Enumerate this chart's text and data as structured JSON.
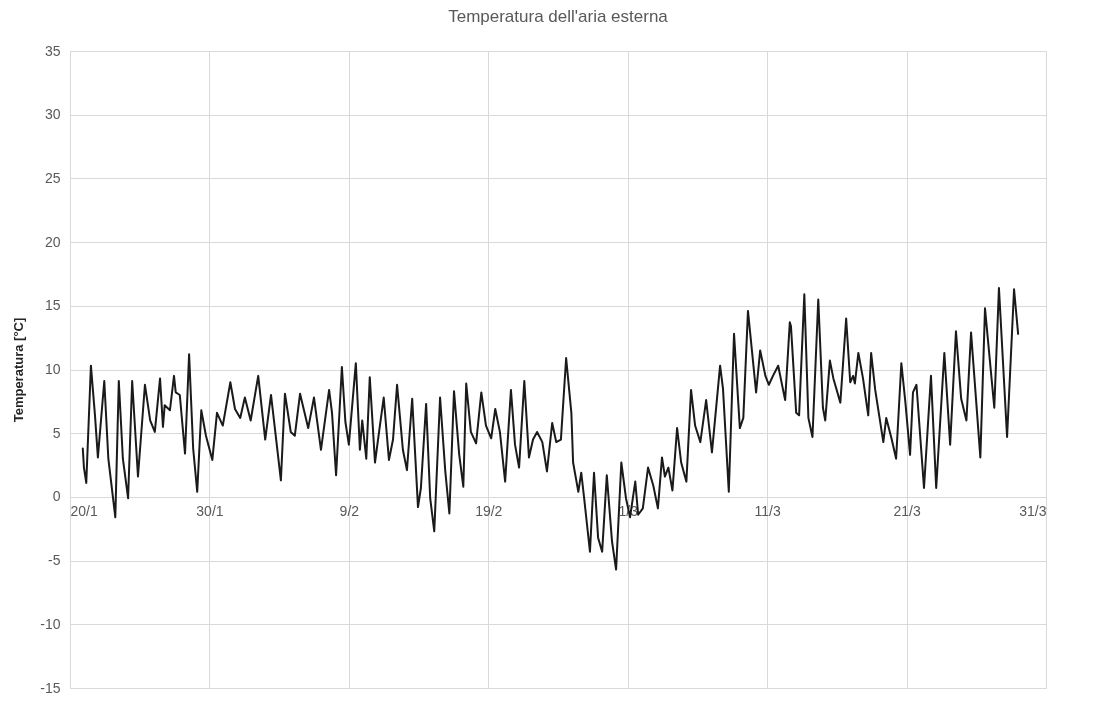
{
  "chart_data": {
    "type": "line",
    "title": "Temperatura dell'aria esterna",
    "ylabel": "Temperatura [°C]",
    "xlim": [
      "--01-20",
      "--03-31"
    ],
    "xticks": [
      {
        "value": "--01-20",
        "label": "20/1"
      },
      {
        "value": "--01-30",
        "label": "30/1"
      },
      {
        "value": "--02-09",
        "label": "9/2"
      },
      {
        "value": "--02-19",
        "label": "19/2"
      },
      {
        "value": "--03-01",
        "label": "1/3"
      },
      {
        "value": "--03-11",
        "label": "11/3"
      },
      {
        "value": "--03-21",
        "label": "21/3"
      },
      {
        "value": "--03-31",
        "label": "31/3"
      }
    ],
    "ylim": [
      -15,
      35
    ],
    "yticks": [
      -15,
      -10,
      -5,
      0,
      5,
      10,
      15,
      20,
      25,
      30,
      35
    ],
    "grid": true,
    "marker": "none",
    "line_style": "solid",
    "series": [
      {
        "color": "#1a1a1a",
        "x": [
          "--01-20T22:00",
          "--01-21T00:00",
          "--01-21T04:00",
          "--01-21T12:00",
          "--01-21T19:00",
          "--01-22T00:00",
          "--01-22T11:00",
          "--01-22T18:00",
          "--01-23T06:00",
          "--01-23T12:00",
          "--01-23T19:00",
          "--01-24T04:00",
          "--01-24T11:00",
          "--01-24T21:00",
          "--01-25T09:00",
          "--01-25T18:00",
          "--01-26T02:00",
          "--01-26T11:00",
          "--01-26T16:00",
          "--01-26T19:00",
          "--01-27T04:00",
          "--01-27T11:00",
          "--01-27T14:00",
          "--01-27T21:00",
          "--01-28T06:00",
          "--01-28T13:00",
          "--01-28T20:00",
          "--01-29T03:00",
          "--01-29T10:00",
          "--01-29T18:00",
          "--01-30T05:00",
          "--01-30T13:00",
          "--01-30T23:00",
          "--01-31T12:00",
          "--01-31T20:00",
          "--02-01T05:00",
          "--02-01T13:00",
          "--02-01T23:00",
          "--02-02T12:00",
          "--02-03T00:00",
          "--02-03T10:00",
          "--02-04T03:00",
          "--02-04T10:00",
          "--02-04T20:00",
          "--02-05T03:00",
          "--02-05T12:00",
          "--02-06T02:00",
          "--02-06T12:00",
          "--02-07T00:00",
          "--02-07T14:00",
          "--02-07T19:00",
          "--02-08T02:00",
          "--02-08T12:00",
          "--02-08T18:00",
          "--02-09T00:00",
          "--02-09T12:00",
          "--02-09T19:00",
          "--02-09T23:00",
          "--02-10T06:00",
          "--02-10T12:00",
          "--02-10T21:00",
          "--02-11T04:00",
          "--02-11T12:00",
          "--02-11T21:00",
          "--02-12T04:00",
          "--02-12T11:00",
          "--02-12T21:00",
          "--02-13T04:00",
          "--02-13T13:00",
          "--02-13T23:00",
          "--02-14T04:00",
          "--02-14T13:00",
          "--02-14T20:00",
          "--02-15T03:00",
          "--02-15T13:00",
          "--02-15T22:00",
          "--02-16T05:00",
          "--02-16T13:00",
          "--02-16T22:00",
          "--02-17T05:00",
          "--02-17T10:00",
          "--02-17T18:00",
          "--02-18T03:00",
          "--02-18T12:00",
          "--02-18T20:00",
          "--02-19T05:00",
          "--02-19T12:00",
          "--02-19T20:00",
          "--02-20T05:00",
          "--02-20T15:00",
          "--02-20T22:00",
          "--02-21T05:00",
          "--02-21T14:00",
          "--02-21T22:00",
          "--02-22T05:00",
          "--02-22T12:00",
          "--02-22T21:00",
          "--02-23T05:00",
          "--02-23T14:00",
          "--02-23T21:00",
          "--02-24T05:00",
          "--02-24T14:00",
          "--02-24T23:00",
          "--02-25T02:00",
          "--02-25T11:00",
          "--02-25T16:00",
          "--02-25T21:00",
          "--02-26T07:00",
          "--02-26T14:00",
          "--02-26T21:00",
          "--02-27T04:00",
          "--02-27T12:00",
          "--02-27T21:00",
          "--02-28T04:00",
          "--02-28T13:00",
          "--02-28T21:00",
          "--03-01T04:00",
          "--03-01T13:00",
          "--03-01T18:00",
          "--03-02T02:00",
          "--03-02T11:00",
          "--03-02T20:00",
          "--03-03T04:00",
          "--03-03T11:00",
          "--03-03T16:00",
          "--03-03T22:00",
          "--03-04T05:00",
          "--03-04T13:00",
          "--03-04T20:00",
          "--03-05T05:00",
          "--03-05T13:00",
          "--03-05T20:00",
          "--03-06T05:00",
          "--03-06T15:00",
          "--03-07T01:00",
          "--03-07T15:00",
          "--03-07T20:00",
          "--03-08T06:00",
          "--03-08T15:00",
          "--03-09T01:00",
          "--03-09T07:00",
          "--03-09T15:00",
          "--03-10T05:00",
          "--03-10T12:00",
          "--03-10T21:00",
          "--03-11T03:00",
          "--03-11T10:00",
          "--03-11T19:00",
          "--03-12T07:00",
          "--03-12T15:00",
          "--03-12T17:00",
          "--03-13T02:00",
          "--03-13T07:00",
          "--03-13T16:00",
          "--03-13T23:00",
          "--03-14T06:00",
          "--03-14T16:00",
          "--03-15T00:00",
          "--03-15T04:00",
          "--03-15T12:00",
          "--03-15T18:00",
          "--03-16T06:00",
          "--03-16T16:00",
          "--03-16T23:00",
          "--03-17T04:00",
          "--03-17T07:00",
          "--03-17T13:00",
          "--03-17T21:00",
          "--03-18T06:00",
          "--03-18T11:00",
          "--03-18T18:00",
          "--03-19T08:00",
          "--03-19T13:00",
          "--03-19T22:00",
          "--03-20T06:00",
          "--03-20T15:00",
          "--03-20T22:00",
          "--03-21T06:00",
          "--03-21T11:00",
          "--03-21T17:00",
          "--03-22T06:00",
          "--03-22T18:00",
          "--03-23T03:00",
          "--03-23T17:00",
          "--03-24T03:00",
          "--03-24T13:00",
          "--03-24T22:00",
          "--03-25T07:00",
          "--03-25T15:00",
          "--03-26T07:00",
          "--03-26T15:00",
          "--03-27T07:00",
          "--03-27T15:00",
          "--03-28T05:00",
          "--03-28T17:00",
          "--03-29T00:00"
        ],
        "values": [
          3.8,
          2.3,
          1.1,
          10.3,
          6.4,
          3.1,
          9.1,
          3.0,
          -1.6,
          9.1,
          3.0,
          -0.1,
          9.1,
          1.6,
          8.8,
          6.0,
          5.1,
          9.3,
          5.5,
          7.2,
          6.8,
          9.5,
          8.2,
          8.0,
          3.4,
          11.2,
          3.8,
          0.4,
          6.8,
          4.8,
          2.9,
          6.6,
          5.6,
          9.0,
          6.9,
          6.2,
          7.8,
          6.0,
          9.5,
          4.5,
          8.0,
          1.3,
          8.1,
          5.1,
          4.8,
          8.1,
          5.4,
          7.8,
          3.7,
          8.4,
          6.6,
          1.7,
          10.2,
          5.9,
          4.1,
          10.5,
          3.7,
          6.0,
          3.0,
          9.4,
          2.7,
          5.1,
          7.8,
          2.9,
          4.5,
          8.8,
          3.7,
          2.1,
          7.7,
          -0.8,
          0.7,
          7.3,
          -0.1,
          -2.7,
          7.8,
          2.0,
          -1.3,
          8.3,
          3.3,
          0.8,
          8.9,
          5.1,
          4.2,
          8.2,
          5.6,
          4.6,
          6.9,
          5.1,
          1.2,
          8.4,
          4.1,
          2.3,
          9.1,
          3.1,
          4.5,
          5.1,
          4.3,
          2.0,
          5.8,
          4.3,
          4.5,
          10.9,
          6.6,
          2.7,
          0.4,
          1.9,
          -0.1,
          -4.3,
          1.9,
          -3.2,
          -4.3,
          1.7,
          -3.5,
          -5.7,
          2.7,
          -0.1,
          -1.6,
          1.2,
          -1.4,
          -0.9,
          2.3,
          0.9,
          -0.9,
          3.1,
          1.6,
          2.3,
          0.5,
          5.4,
          2.7,
          1.2,
          8.4,
          5.6,
          4.3,
          7.6,
          3.5,
          10.3,
          8.5,
          0.4,
          12.8,
          5.4,
          6.2,
          14.6,
          8.2,
          11.5,
          9.5,
          8.8,
          9.5,
          10.3,
          7.6,
          13.7,
          13.4,
          6.6,
          6.4,
          15.9,
          6.2,
          4.7,
          15.5,
          7.0,
          6.0,
          10.7,
          9.3,
          7.4,
          14.0,
          9.0,
          9.5,
          8.9,
          11.3,
          9.3,
          6.4,
          11.3,
          8.4,
          4.3,
          6.2,
          4.6,
          3.0,
          10.5,
          7.4,
          3.3,
          8.2,
          8.8,
          0.7,
          9.5,
          0.7,
          11.3,
          4.1,
          13.0,
          7.7,
          6.0,
          12.9,
          3.1,
          14.8,
          7.0,
          16.4,
          4.7,
          16.3,
          12.8
        ]
      }
    ]
  }
}
